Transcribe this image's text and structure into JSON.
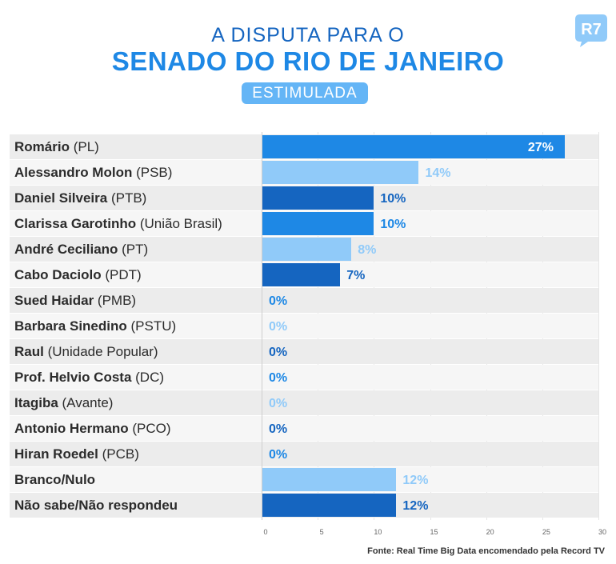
{
  "header": {
    "subtitle": "A DISPUTA PARA O",
    "title": "SENADO DO RIO DE JANEIRO",
    "badge": "ESTIMULADA",
    "logo_text": "R7"
  },
  "colors": {
    "dark": "#1565c0",
    "mid": "#1e88e5",
    "light": "#90caf9",
    "label_dark": "#1565c0",
    "label_mid": "#1e88e5",
    "label_light": "#90caf9"
  },
  "source": "Fonte: Real Time Big Data encomendado pela Record TV",
  "chart_data": {
    "type": "bar",
    "orientation": "horizontal",
    "title": "SENADO DO RIO DE JANEIRO",
    "xlim": [
      0,
      30
    ],
    "xticks": [
      0,
      5,
      10,
      15,
      20,
      25,
      30
    ],
    "grid": true,
    "categories": [
      {
        "name": "Romário",
        "party": "(PL)",
        "value": 27,
        "label": "27%",
        "tone": "mid"
      },
      {
        "name": "Alessandro Molon",
        "party": "(PSB)",
        "value": 14,
        "label": "14%",
        "tone": "light"
      },
      {
        "name": "Daniel Silveira",
        "party": "(PTB)",
        "value": 10,
        "label": "10%",
        "tone": "dark"
      },
      {
        "name": "Clarissa Garotinho",
        "party": "(União Brasil)",
        "value": 10,
        "label": "10%",
        "tone": "mid"
      },
      {
        "name": "André Ceciliano",
        "party": "(PT)",
        "value": 8,
        "label": "8%",
        "tone": "light"
      },
      {
        "name": "Cabo Daciolo",
        "party": "(PDT)",
        "value": 7,
        "label": "7%",
        "tone": "dark"
      },
      {
        "name": "Sued Haidar",
        "party": "(PMB)",
        "value": 0,
        "label": "0%",
        "tone": "mid"
      },
      {
        "name": "Barbara Sinedino",
        "party": "(PSTU)",
        "value": 0,
        "label": "0%",
        "tone": "light"
      },
      {
        "name": "Raul",
        "party": "(Unidade Popular)",
        "value": 0,
        "label": "0%",
        "tone": "dark"
      },
      {
        "name": "Prof. Helvio Costa",
        "party": "(DC)",
        "value": 0,
        "label": "0%",
        "tone": "mid"
      },
      {
        "name": "Itagiba",
        "party": "(Avante)",
        "value": 0,
        "label": "0%",
        "tone": "light"
      },
      {
        "name": "Antonio Hermano",
        "party": "(PCO)",
        "value": 0,
        "label": "0%",
        "tone": "dark"
      },
      {
        "name": "Hiran Roedel",
        "party": "(PCB)",
        "value": 0,
        "label": "0%",
        "tone": "mid"
      },
      {
        "name": "Branco/Nulo",
        "party": "",
        "value": 12,
        "label": "12%",
        "tone": "light"
      },
      {
        "name": "Não sabe/Não respondeu",
        "party": "",
        "value": 12,
        "label": "12%",
        "tone": "dark"
      }
    ]
  }
}
